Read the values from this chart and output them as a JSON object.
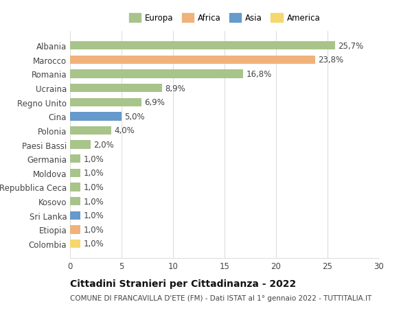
{
  "countries": [
    "Albania",
    "Marocco",
    "Romania",
    "Ucraina",
    "Regno Unito",
    "Cina",
    "Polonia",
    "Paesi Bassi",
    "Germania",
    "Moldova",
    "Repubblica Ceca",
    "Kosovo",
    "Sri Lanka",
    "Etiopia",
    "Colombia"
  ],
  "values": [
    25.7,
    23.8,
    16.8,
    8.9,
    6.9,
    5.0,
    4.0,
    2.0,
    1.0,
    1.0,
    1.0,
    1.0,
    1.0,
    1.0,
    1.0
  ],
  "labels": [
    "25,7%",
    "23,8%",
    "16,8%",
    "8,9%",
    "6,9%",
    "5,0%",
    "4,0%",
    "2,0%",
    "1,0%",
    "1,0%",
    "1,0%",
    "1,0%",
    "1,0%",
    "1,0%",
    "1,0%"
  ],
  "continents": [
    "Europa",
    "Africa",
    "Europa",
    "Europa",
    "Europa",
    "Asia",
    "Europa",
    "Europa",
    "Europa",
    "Europa",
    "Europa",
    "Europa",
    "Asia",
    "Africa",
    "America"
  ],
  "continent_colors": {
    "Europa": "#a8c48a",
    "Africa": "#f0b27a",
    "Asia": "#6699cc",
    "America": "#f5d76e"
  },
  "legend_order": [
    "Europa",
    "Africa",
    "Asia",
    "America"
  ],
  "xlim": [
    0,
    30
  ],
  "xticks": [
    0,
    5,
    10,
    15,
    20,
    25,
    30
  ],
  "title": "Cittadini Stranieri per Cittadinanza - 2022",
  "subtitle": "COMUNE DI FRANCAVILLA D'ETE (FM) - Dati ISTAT al 1° gennaio 2022 - TUTTITALIA.IT",
  "background_color": "#ffffff",
  "grid_color": "#dddddd",
  "bar_height": 0.6,
  "label_fontsize": 8.5,
  "tick_fontsize": 8.5,
  "title_fontsize": 10,
  "subtitle_fontsize": 7.5
}
